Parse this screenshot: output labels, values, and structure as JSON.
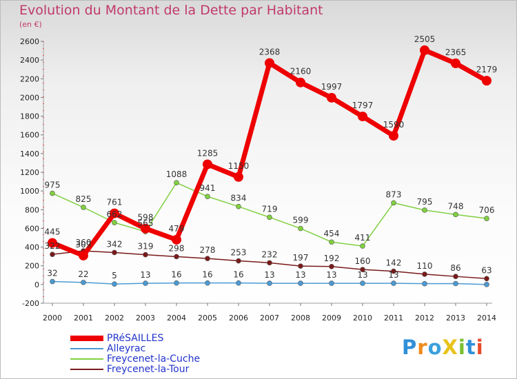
{
  "header": {
    "title": "Evolution du Montant de la Dette par Habitant",
    "subtitle": "(en €)"
  },
  "logo": {
    "text": "ProXiti"
  },
  "chart_data": {
    "type": "line",
    "title": "Evolution du Montant de la Dette par Habitant",
    "subtitle": "(en €)",
    "xlabel": "",
    "ylabel": "",
    "ylim": [
      -200,
      2600
    ],
    "yticks": [
      -200,
      0,
      200,
      400,
      600,
      800,
      1000,
      1200,
      1400,
      1600,
      1800,
      2000,
      2200,
      2400,
      2600
    ],
    "grid": false,
    "legend_position": "bottom-left",
    "categories": [
      "2000",
      "2001",
      "2002",
      "2003",
      "2004",
      "2005",
      "2006",
      "2007",
      "2008",
      "2009",
      "2010",
      "2011",
      "2012",
      "2013",
      "2014"
    ],
    "series": [
      {
        "name": "PRéSAILLES",
        "color": "#ee0000",
        "values": [
          445,
          309,
          761,
          598,
          479,
          1285,
          1150,
          2368,
          2160,
          1997,
          1797,
          1590,
          2505,
          2365,
          2179
        ]
      },
      {
        "name": "Alleyrac",
        "color": "#4b9ad3",
        "values": [
          32,
          22,
          5,
          13,
          16,
          16,
          16,
          13,
          13,
          13,
          13,
          13,
          9,
          10,
          0
        ]
      },
      {
        "name": "Freycenet-la-Cuche",
        "color": "#80d040",
        "values": [
          975,
          825,
          662,
          565,
          1088,
          941,
          834,
          719,
          599,
          454,
          411,
          873,
          795,
          748,
          706
        ]
      },
      {
        "name": "Freycenet-la-Tour",
        "color": "#7a1a1a",
        "values": [
          322,
          360,
          342,
          319,
          298,
          278,
          253,
          232,
          197,
          192,
          160,
          142,
          110,
          86,
          63
        ]
      }
    ]
  }
}
